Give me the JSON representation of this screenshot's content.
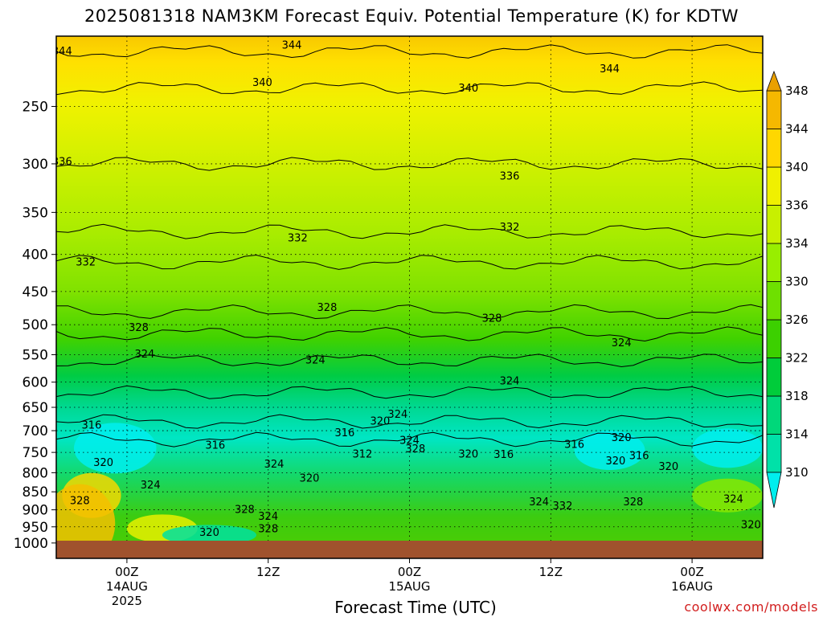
{
  "chart_data": {
    "type": "heatmap",
    "title": "2025081318 NAM3KM Forecast Equiv. Potential Temperature (K) for KDTW",
    "xlabel": "Forecast Time (UTC)",
    "ylabel": "",
    "x_ticks": [
      {
        "hour": 6,
        "label": "00Z",
        "sub": [
          "14AUG",
          "2025"
        ]
      },
      {
        "hour": 18,
        "label": "12Z",
        "sub": []
      },
      {
        "hour": 30,
        "label": "00Z",
        "sub": [
          "15AUG"
        ]
      },
      {
        "hour": 42,
        "label": "12Z",
        "sub": []
      },
      {
        "hour": 54,
        "label": "00Z",
        "sub": [
          "16AUG"
        ]
      }
    ],
    "xlim": [
      0,
      60
    ],
    "y_scale": "log-pressure",
    "ylim": [
      1050,
      200
    ],
    "y_ticks": [
      250,
      300,
      350,
      400,
      450,
      500,
      550,
      600,
      650,
      700,
      750,
      800,
      850,
      900,
      950,
      1000
    ],
    "colorbar": {
      "levels": [
        310,
        314,
        318,
        322,
        326,
        330,
        334,
        336,
        340,
        344,
        348
      ],
      "colors": [
        "#00eeee",
        "#00e1a8",
        "#00d87a",
        "#00cc3a",
        "#3cd000",
        "#6ee000",
        "#98ee00",
        "#c8f000",
        "#f0f000",
        "#ffd700",
        "#f5b800",
        "#eaa000"
      ],
      "extend": "both"
    },
    "contour_labels": [
      {
        "v": 344,
        "t": 0.5,
        "p": 210
      },
      {
        "v": 344,
        "t": 20,
        "p": 206
      },
      {
        "v": 344,
        "t": 47,
        "p": 222
      },
      {
        "v": 340,
        "t": 17.5,
        "p": 232
      },
      {
        "v": 340,
        "t": 35,
        "p": 236
      },
      {
        "v": 336,
        "t": 0.5,
        "p": 298
      },
      {
        "v": 336,
        "t": 38.5,
        "p": 312
      },
      {
        "v": 332,
        "t": 20.5,
        "p": 380
      },
      {
        "v": 332,
        "t": 38.5,
        "p": 367
      },
      {
        "v": 332,
        "t": 2.5,
        "p": 410
      },
      {
        "v": 328,
        "t": 23,
        "p": 474
      },
      {
        "v": 328,
        "t": 37,
        "p": 490
      },
      {
        "v": 328,
        "t": 7,
        "p": 505
      },
      {
        "v": 324,
        "t": 7.5,
        "p": 549
      },
      {
        "v": 324,
        "t": 22,
        "p": 560
      },
      {
        "v": 324,
        "t": 38.5,
        "p": 598
      },
      {
        "v": 324,
        "t": 48,
        "p": 530
      },
      {
        "v": 324,
        "t": 29,
        "p": 665
      },
      {
        "v": 320,
        "t": 27.5,
        "p": 680
      },
      {
        "v": 320,
        "t": 48,
        "p": 716
      },
      {
        "v": 320,
        "t": 4,
        "p": 775
      },
      {
        "v": 320,
        "t": 21.5,
        "p": 815
      },
      {
        "v": 320,
        "t": 35,
        "p": 755
      },
      {
        "v": 320,
        "t": 47.5,
        "p": 771
      },
      {
        "v": 320,
        "t": 52,
        "p": 785
      },
      {
        "v": 320,
        "t": 13,
        "p": 968
      },
      {
        "v": 320,
        "t": 59,
        "p": 945
      },
      {
        "v": 316,
        "t": 3,
        "p": 688
      },
      {
        "v": 316,
        "t": 24.5,
        "p": 705
      },
      {
        "v": 316,
        "t": 13.5,
        "p": 734
      },
      {
        "v": 316,
        "t": 38,
        "p": 756
      },
      {
        "v": 316,
        "t": 44,
        "p": 732
      },
      {
        "v": 316,
        "t": 49.5,
        "p": 758
      },
      {
        "v": 312,
        "t": 26,
        "p": 755
      },
      {
        "v": 324,
        "t": 30,
        "p": 723
      },
      {
        "v": 328,
        "t": 30.5,
        "p": 742
      },
      {
        "v": 324,
        "t": 18.5,
        "p": 779
      },
      {
        "v": 324,
        "t": 8,
        "p": 832
      },
      {
        "v": 324,
        "t": 41,
        "p": 878
      },
      {
        "v": 332,
        "t": 43,
        "p": 890
      },
      {
        "v": 328,
        "t": 49,
        "p": 878
      },
      {
        "v": 324,
        "t": 57.5,
        "p": 870
      },
      {
        "v": 328,
        "t": 2,
        "p": 875
      },
      {
        "v": 328,
        "t": 16,
        "p": 900
      },
      {
        "v": 324,
        "t": 18,
        "p": 920
      },
      {
        "v": 328,
        "t": 18,
        "p": 957
      }
    ]
  },
  "credit": "coolwx.com/models"
}
